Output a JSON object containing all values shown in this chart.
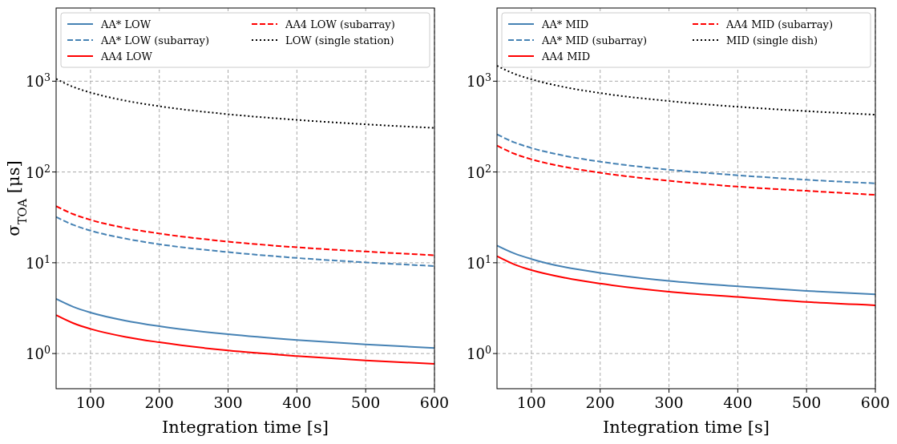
{
  "chart_data": [
    {
      "type": "line",
      "xlabel": "Integration time [s]",
      "ylabel": "σ$_{TOA}$ [μs]",
      "x": [
        50,
        75,
        100,
        150,
        200,
        300,
        400,
        500,
        600
      ],
      "log": "y",
      "grid": true,
      "legend": "top",
      "xlim": [
        50,
        600
      ],
      "ylim": [
        0.41,
        6400
      ],
      "xticks": [
        100,
        200,
        300,
        400,
        500,
        600
      ],
      "yticks": [
        {
          "value": 1,
          "label": "10$^{0}$"
        },
        {
          "value": 10,
          "label": "10$^{1}$"
        },
        {
          "value": 100,
          "label": "10$^{2}$"
        },
        {
          "value": 1000,
          "label": "10$^{3}$"
        }
      ],
      "series": [
        {
          "name": "AA* LOW",
          "color": "#4682b4",
          "line_style": "solid",
          "values": [
            4.0,
            3.27,
            2.83,
            2.31,
            2.0,
            1.63,
            1.41,
            1.26,
            1.15
          ]
        },
        {
          "name": "AA* LOW (subarray)",
          "color": "#4682b4",
          "line_style": "dashed",
          "values": [
            32,
            26.1,
            22.6,
            18.5,
            16,
            13.1,
            11.3,
            10.1,
            9.2
          ]
        },
        {
          "name": "AA4 LOW",
          "color": "#ff0000",
          "line_style": "solid",
          "values": [
            2.65,
            2.16,
            1.87,
            1.53,
            1.33,
            1.08,
            0.94,
            0.84,
            0.77
          ]
        },
        {
          "name": "AA4 LOW (subarray)",
          "color": "#ff0000",
          "line_style": "dashed",
          "values": [
            42,
            34.3,
            29.7,
            24.2,
            21,
            17.1,
            14.8,
            13.3,
            12.1
          ]
        },
        {
          "name": "LOW (single station)",
          "color": "#000000",
          "line_style": "dotted",
          "values": [
            1060,
            865,
            750,
            612,
            530,
            433,
            375,
            335,
            306
          ]
        }
      ]
    },
    {
      "type": "line",
      "xlabel": "Integration time [s]",
      "x": [
        50,
        75,
        100,
        150,
        200,
        300,
        400,
        500,
        600
      ],
      "log": "y",
      "grid": true,
      "legend": "top",
      "xlim": [
        50,
        600
      ],
      "ylim": [
        0.41,
        6400
      ],
      "xticks": [
        100,
        200,
        300,
        400,
        500,
        600
      ],
      "yticks": [
        {
          "value": 1,
          "label": "10$^{0}$"
        },
        {
          "value": 10,
          "label": "10$^{1}$"
        },
        {
          "value": 100,
          "label": "10$^{2}$"
        },
        {
          "value": 1000,
          "label": "10$^{3}$"
        }
      ],
      "series": [
        {
          "name": "AA* MID",
          "color": "#4682b4",
          "line_style": "solid",
          "values": [
            15.5,
            12.7,
            11,
            8.9,
            7.75,
            6.3,
            5.5,
            4.9,
            4.5
          ]
        },
        {
          "name": "AA* MID (subarray)",
          "color": "#4682b4",
          "line_style": "dashed",
          "values": [
            260,
            212,
            184,
            150,
            130,
            106,
            92,
            82,
            75
          ]
        },
        {
          "name": "AA4 MID",
          "color": "#ff0000",
          "line_style": "solid",
          "values": [
            11.8,
            9.6,
            8.3,
            6.8,
            5.9,
            4.8,
            4.2,
            3.7,
            3.4
          ]
        },
        {
          "name": "AA4 MID (subarray)",
          "color": "#ff0000",
          "line_style": "dashed",
          "values": [
            195,
            159,
            138,
            113,
            98,
            80,
            69,
            62,
            56
          ]
        },
        {
          "name": "MID (single dish)",
          "color": "#000000",
          "line_style": "dotted",
          "values": [
            1480,
            1208,
            1050,
            855,
            740,
            604,
            523,
            468,
            427
          ]
        }
      ]
    }
  ]
}
